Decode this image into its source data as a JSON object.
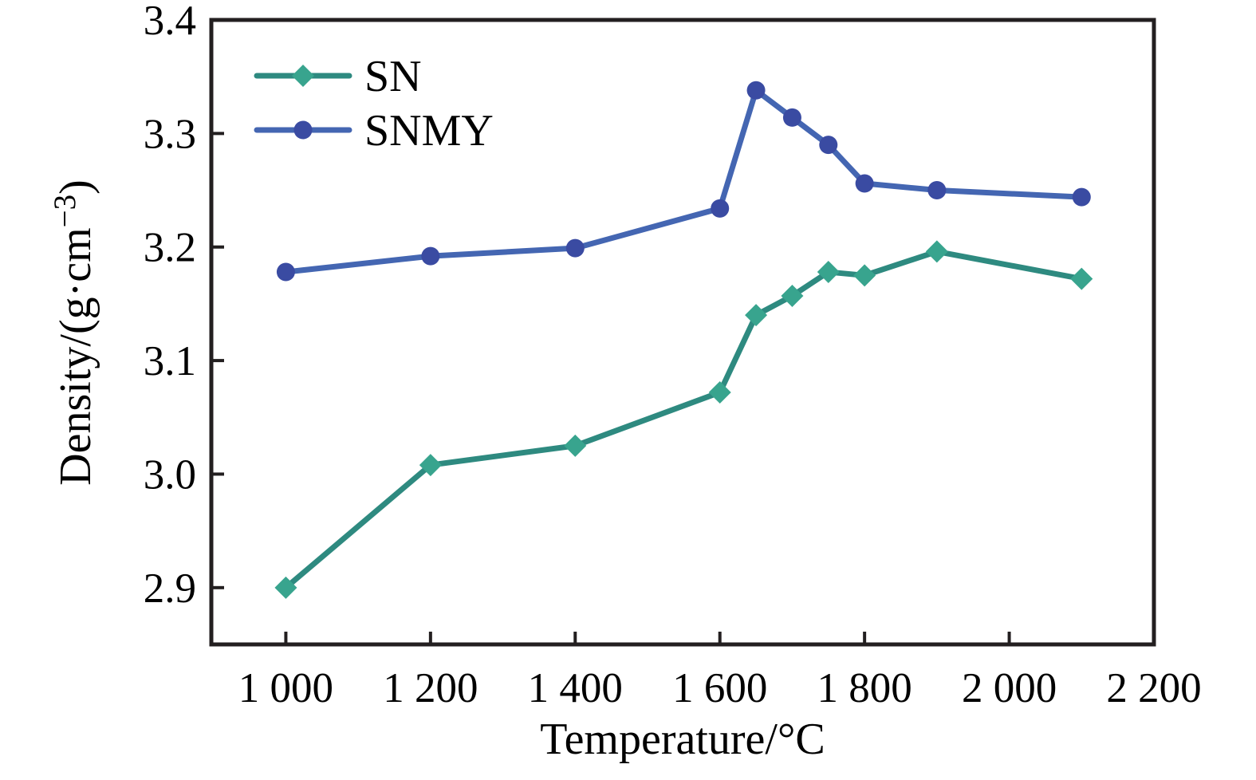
{
  "figure": {
    "background": "#ffffff",
    "frame_color": "#231f20",
    "text_color": "#000000"
  },
  "chart_data": {
    "type": "line",
    "title": "",
    "xlabel": "Temperature/°C",
    "ylabel": "Density/(g·cm⁻³)",
    "ylabel_parts": {
      "pre": "Density/(g·cm",
      "sup": "−3",
      "post": ")"
    },
    "xlim": [
      897,
      2200
    ],
    "ylim": [
      2.85,
      3.4
    ],
    "grid": false,
    "legend_position": "top-left-inside",
    "x_ticks": {
      "values": [
        1000,
        1200,
        1400,
        1600,
        1800,
        2000,
        2200
      ],
      "labels": [
        "1 000",
        "1 200",
        "1 400",
        "1 600",
        "1 800",
        "2 000",
        "2 200"
      ]
    },
    "y_ticks": {
      "values": [
        2.9,
        3.0,
        3.1,
        3.2,
        3.3,
        3.4
      ],
      "labels": [
        "2.9",
        "3.0",
        "3.1",
        "3.2",
        "3.3",
        "3.4"
      ]
    },
    "x": [
      1000,
      1200,
      1400,
      1600,
      1650,
      1700,
      1750,
      1800,
      1900,
      2100
    ],
    "series": [
      {
        "name": "SN",
        "marker": "diamond",
        "line_color": "#2e8a80",
        "marker_color": "#38a48e",
        "values": [
          2.9,
          3.008,
          3.025,
          3.072,
          3.14,
          3.157,
          3.178,
          3.175,
          3.196,
          3.172
        ]
      },
      {
        "name": "SNMY",
        "marker": "circle",
        "line_color": "#4466b2",
        "marker_color": "#3a4ba2",
        "values": [
          3.178,
          3.192,
          3.199,
          3.234,
          3.338,
          3.314,
          3.29,
          3.256,
          3.25,
          3.244
        ]
      }
    ]
  }
}
